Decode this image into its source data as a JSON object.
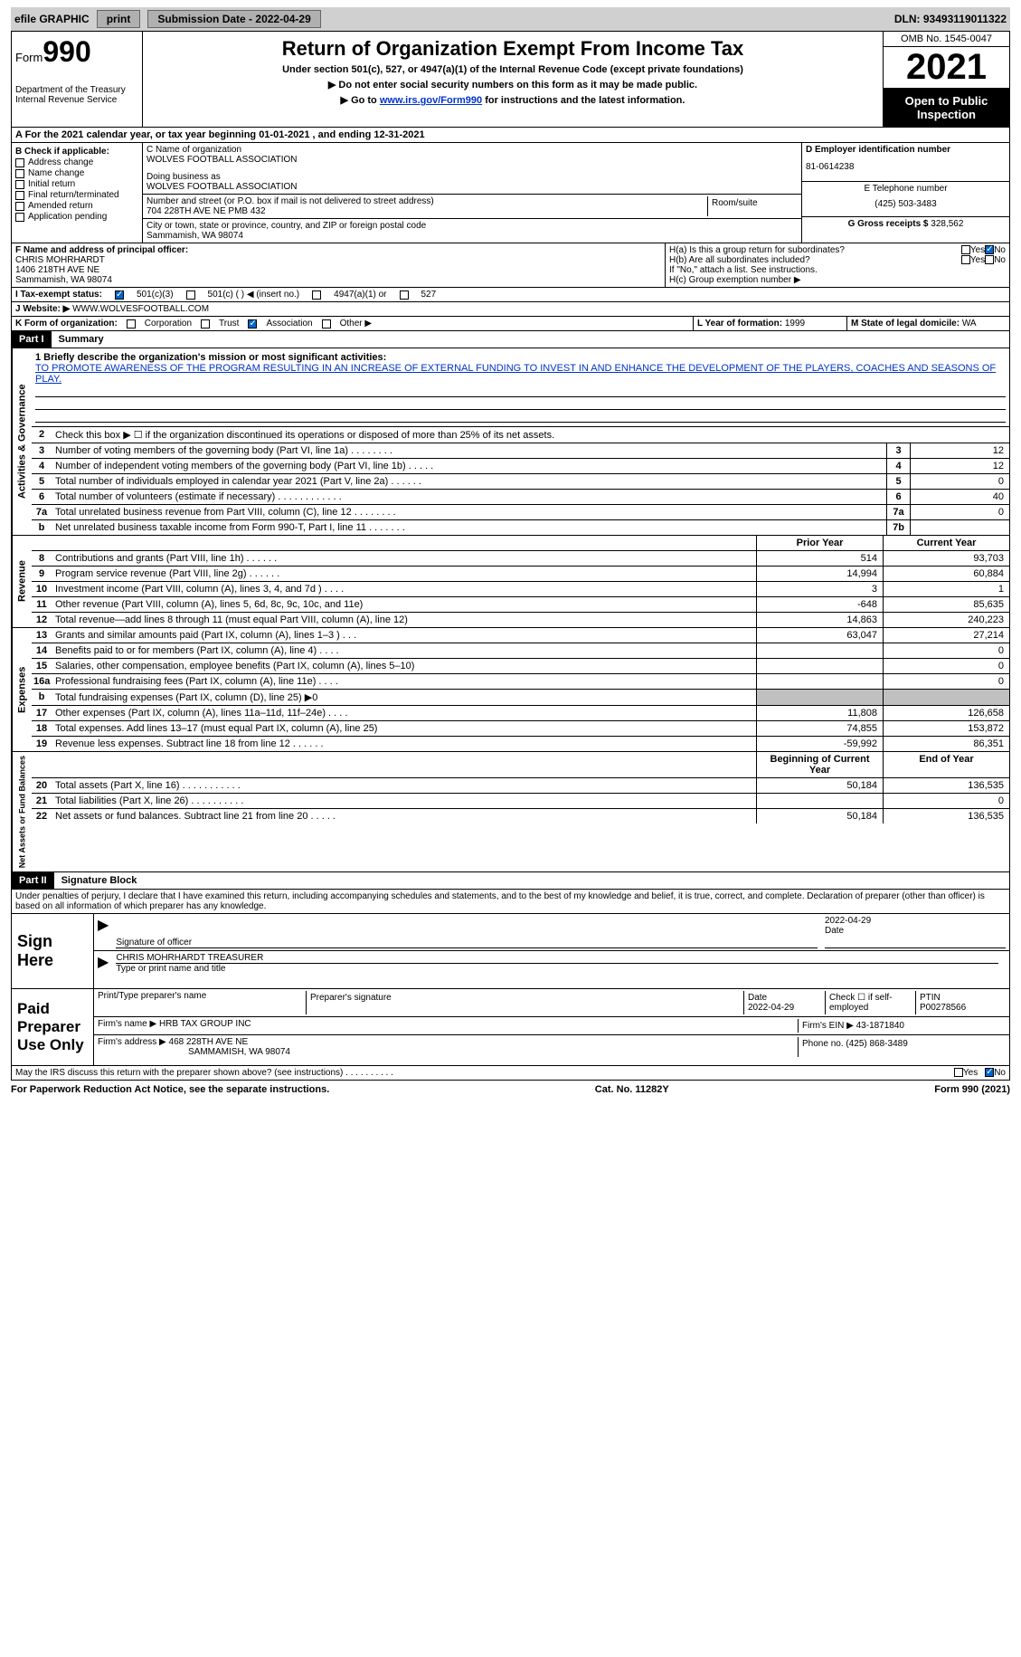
{
  "topbar": {
    "efile": "efile GRAPHIC",
    "print": "print",
    "subdate_label": "Submission Date - ",
    "subdate": "2022-04-29",
    "dln": "DLN: 93493119011322"
  },
  "header": {
    "form_prefix": "Form",
    "form_num": "990",
    "title": "Return of Organization Exempt From Income Tax",
    "subtitle": "Under section 501(c), 527, or 4947(a)(1) of the Internal Revenue Code (except private foundations)",
    "line1": "▶ Do not enter social security numbers on this form as it may be made public.",
    "line2a": "▶ Go to ",
    "line2_link": "www.irs.gov/Form990",
    "line2b": " for instructions and the latest information.",
    "dept": "Department of the Treasury Internal Revenue Service",
    "omb": "OMB No. 1545-0047",
    "year": "2021",
    "open": "Open to Public Inspection"
  },
  "rowA": "A For the 2021 calendar year, or tax year beginning 01-01-2021   , and ending 12-31-2021",
  "boxB": {
    "label": "B Check if applicable:",
    "items": [
      "Address change",
      "Name change",
      "Initial return",
      "Final return/terminated",
      "Amended return",
      "Application pending"
    ]
  },
  "boxC": {
    "name_label": "C Name of organization",
    "name": "WOLVES FOOTBALL ASSOCIATION",
    "dba_label": "Doing business as",
    "dba": "WOLVES FOOTBALL ASSOCIATION",
    "street_label": "Number and street (or P.O. box if mail is not delivered to street address)",
    "room_label": "Room/suite",
    "street": "704 228TH AVE NE PMB 432",
    "city_label": "City or town, state or province, country, and ZIP or foreign postal code",
    "city": "Sammamish, WA  98074"
  },
  "boxD": {
    "label": "D Employer identification number",
    "value": "81-0614238",
    "phone_label": "E Telephone number",
    "phone": "(425) 503-3483",
    "gross_label": "G Gross receipts $ ",
    "gross": "328,562"
  },
  "boxF": {
    "label": "F  Name and address of principal officer:",
    "name": "CHRIS MOHRHARDT",
    "addr1": "1406 218TH AVE NE",
    "addr2": "Sammamish, WA  98074"
  },
  "boxH": {
    "ha": "H(a)  Is this a group return for subordinates?",
    "hb": "H(b)  Are all subordinates included?",
    "hb_note": "If \"No,\" attach a list. See instructions.",
    "hc": "H(c)  Group exemption number ▶",
    "yes": "Yes",
    "no": "No"
  },
  "rowI": {
    "label": "I   Tax-exempt status:",
    "opts": [
      "501(c)(3)",
      "501(c) (  ) ◀ (insert no.)",
      "4947(a)(1) or",
      "527"
    ]
  },
  "rowJ": {
    "label": "J   Website: ▶",
    "value": " WWW.WOLVESFOOTBALL.COM"
  },
  "rowK": {
    "label": "K Form of organization:",
    "opts": [
      "Corporation",
      "Trust",
      "Association",
      "Other ▶"
    ],
    "l_label": "L Year of formation: ",
    "l_val": "1999",
    "m_label": "M State of legal domicile: ",
    "m_val": "WA"
  },
  "part1": {
    "hdr": "Part I",
    "title": "Summary"
  },
  "mission_label": "1  Briefly describe the organization's mission or most significant activities:",
  "mission": "TO PROMOTE AWARENESS OF THE PROGRAM RESULTING IN AN INCREASE OF EXTERNAL FUNDING TO INVEST IN AND ENHANCE THE DEVELOPMENT OF THE PLAYERS, COACHES AND SEASONS OF PLAY.",
  "line2": "Check this box ▶ ☐  if the organization discontinued its operations or disposed of more than 25% of its net assets.",
  "vlabels": {
    "ag": "Activities & Governance",
    "rev": "Revenue",
    "exp": "Expenses",
    "na": "Net Assets or Fund Balances"
  },
  "summary_lines": [
    {
      "n": "3",
      "t": "Number of voting members of the governing body (Part VI, line 1a)   .    .    .    .    .    .    .    .",
      "b": "3",
      "v": "12"
    },
    {
      "n": "4",
      "t": "Number of independent voting members of the governing body (Part VI, line 1b)   .    .    .    .    .",
      "b": "4",
      "v": "12"
    },
    {
      "n": "5",
      "t": "Total number of individuals employed in calendar year 2021 (Part V, line 2a)   .    .    .    .    .    .",
      "b": "5",
      "v": "0"
    },
    {
      "n": "6",
      "t": "Total number of volunteers (estimate if necessary)    .    .    .    .    .    .    .    .    .    .    .    .",
      "b": "6",
      "v": "40"
    },
    {
      "n": "7a",
      "t": "Total unrelated business revenue from Part VIII, column (C), line 12   .    .    .    .    .    .    .    .",
      "b": "7a",
      "v": "0"
    },
    {
      "n": "b",
      "t": "Net unrelated business taxable income from Form 990-T, Part I, line 11   .    .    .    .    .    .    .",
      "b": "7b",
      "v": ""
    }
  ],
  "col_hdrs": {
    "prior": "Prior Year",
    "current": "Current Year",
    "boy": "Beginning of Current Year",
    "eoy": "End of Year"
  },
  "revenue_lines": [
    {
      "n": "8",
      "t": "Contributions and grants (Part VIII, line 1h)   .    .    .    .    .    .",
      "p": "514",
      "c": "93,703"
    },
    {
      "n": "9",
      "t": "Program service revenue (Part VIII, line 2g)   .    .    .    .    .    .",
      "p": "14,994",
      "c": "60,884"
    },
    {
      "n": "10",
      "t": "Investment income (Part VIII, column (A), lines 3, 4, and 7d )   .    .    .    .",
      "p": "3",
      "c": "1"
    },
    {
      "n": "11",
      "t": "Other revenue (Part VIII, column (A), lines 5, 6d, 8c, 9c, 10c, and 11e)",
      "p": "-648",
      "c": "85,635"
    },
    {
      "n": "12",
      "t": "Total revenue—add lines 8 through 11 (must equal Part VIII, column (A), line 12)",
      "p": "14,863",
      "c": "240,223"
    }
  ],
  "expense_lines": [
    {
      "n": "13",
      "t": "Grants and similar amounts paid (Part IX, column (A), lines 1–3 )   .    .    .",
      "p": "63,047",
      "c": "27,214"
    },
    {
      "n": "14",
      "t": "Benefits paid to or for members (Part IX, column (A), line 4)   .    .    .    .",
      "p": "",
      "c": "0"
    },
    {
      "n": "15",
      "t": "Salaries, other compensation, employee benefits (Part IX, column (A), lines 5–10)",
      "p": "",
      "c": "0"
    },
    {
      "n": "16a",
      "t": "Professional fundraising fees (Part IX, column (A), line 11e)   .    .    .    .",
      "p": "",
      "c": "0"
    },
    {
      "n": "b",
      "t": "Total fundraising expenses (Part IX, column (D), line 25) ▶0",
      "p": "shaded",
      "c": "shaded"
    },
    {
      "n": "17",
      "t": "Other expenses (Part IX, column (A), lines 11a–11d, 11f–24e)   .    .    .    .",
      "p": "11,808",
      "c": "126,658"
    },
    {
      "n": "18",
      "t": "Total expenses. Add lines 13–17 (must equal Part IX, column (A), line 25)",
      "p": "74,855",
      "c": "153,872"
    },
    {
      "n": "19",
      "t": "Revenue less expenses. Subtract line 18 from line 12   .    .    .    .    .    .",
      "p": "-59,992",
      "c": "86,351"
    }
  ],
  "na_lines": [
    {
      "n": "20",
      "t": "Total assets (Part X, line 16)   .    .    .    .    .    .    .    .    .    .    .",
      "p": "50,184",
      "c": "136,535"
    },
    {
      "n": "21",
      "t": "Total liabilities (Part X, line 26)   .    .    .    .    .    .    .    .    .    .",
      "p": "",
      "c": "0"
    },
    {
      "n": "22",
      "t": "Net assets or fund balances. Subtract line 21 from line 20   .    .    .    .    .",
      "p": "50,184",
      "c": "136,535"
    }
  ],
  "part2": {
    "hdr": "Part II",
    "title": "Signature Block"
  },
  "penalties": "Under penalties of perjury, I declare that I have examined this return, including accompanying schedules and statements, and to the best of my knowledge and belief, it is true, correct, and complete. Declaration of preparer (other than officer) is based on all information of which preparer has any knowledge.",
  "sign": {
    "left": "Sign Here",
    "sig_label": "Signature of officer",
    "date": "2022-04-29",
    "date_label": "Date",
    "name": "CHRIS MOHRHARDT TREASURER",
    "name_label": "Type or print name and title"
  },
  "paid": {
    "left": "Paid Preparer Use Only",
    "r1": {
      "a": "Print/Type preparer's name",
      "b": "Preparer's signature",
      "c": "Date",
      "c_val": "2022-04-29",
      "d": "Check ☐ if self-employed",
      "e": "PTIN",
      "e_val": "P00278566"
    },
    "r2": {
      "a": "Firm's name      ▶ ",
      "a_val": "HRB TAX GROUP INC",
      "b": "Firm's EIN ▶ ",
      "b_val": "43-1871840"
    },
    "r3": {
      "a": "Firm's address ▶ ",
      "a_val": "468 228TH AVE NE",
      "a_val2": "SAMMAMISH, WA  98074",
      "b": "Phone no. ",
      "b_val": "(425) 868-3489"
    }
  },
  "may_discuss": "May the IRS discuss this return with the preparer shown above? (see instructions)   .    .    .    .    .    .    .    .    .    .",
  "footer": {
    "a": "For Paperwork Reduction Act Notice, see the separate instructions.",
    "b": "Cat. No. 11282Y",
    "c": "Form 990 (2021)"
  }
}
